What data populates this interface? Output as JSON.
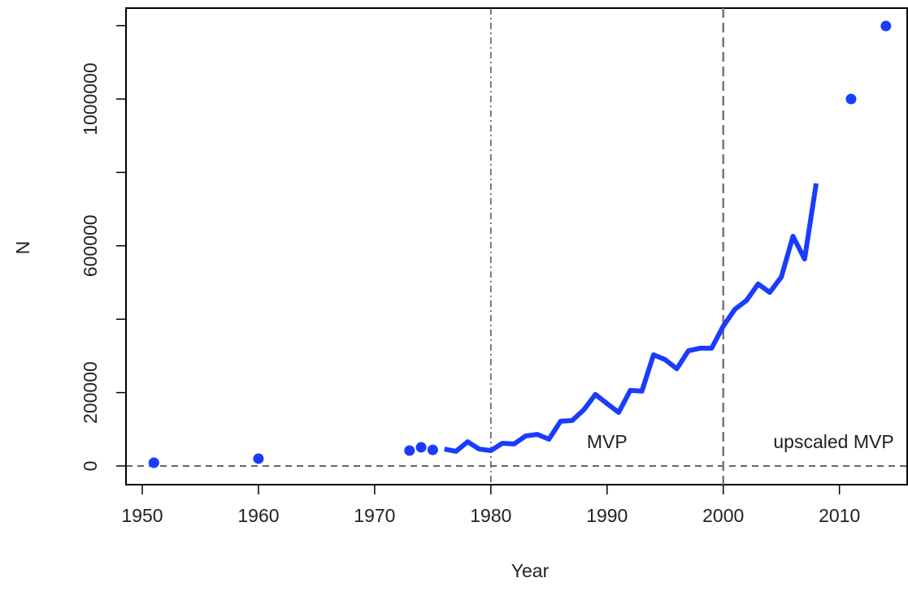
{
  "chart_data": {
    "type": "line",
    "x_label": "Year",
    "y_label": "N",
    "xlim": [
      1948.6,
      2015.9
    ],
    "ylim": [
      -50900,
      1247800
    ],
    "xticks": [
      1950,
      1960,
      1970,
      1980,
      1990,
      2000,
      2010
    ],
    "yticks": [
      0,
      200000,
      {
        "value": 400000,
        "label": null
      },
      600000,
      {
        "value": 800000,
        "label": null
      },
      1000000,
      {
        "value": 1200000,
        "label": null
      }
    ],
    "series": [
      {
        "style": "points",
        "color": "#1a3cff",
        "x": [
          1951,
          1960,
          1973,
          1974,
          1975,
          2011,
          2014
        ],
        "values": [
          8800,
          20000,
          42000,
          51000,
          44000,
          1000000,
          1199000
        ]
      },
      {
        "style": "line",
        "color": "#1a3cff",
        "x": [
          1976,
          1977,
          1978,
          1979,
          1980,
          1981,
          1982,
          1983,
          1984,
          1985,
          1986,
          1987,
          1988,
          1989,
          1990,
          1991,
          1992,
          1993,
          1994,
          1995,
          1996,
          1997,
          1998,
          1999,
          2000,
          2001,
          2002,
          2003,
          2004,
          2005,
          2006,
          2007,
          2008
        ],
        "values": [
          46000,
          40000,
          66000,
          46000,
          42000,
          62000,
          60000,
          82000,
          86000,
          73000,
          122000,
          124000,
          153000,
          195000,
          170000,
          146000,
          206000,
          204000,
          303000,
          290000,
          265000,
          314000,
          321000,
          321000,
          381000,
          427000,
          451000,
          496000,
          473000,
          515000,
          626000,
          564000,
          770000
        ]
      }
    ],
    "vlines": [
      {
        "x": 1980,
        "dash": "dotdash"
      },
      {
        "x": 2000,
        "dash": "dashed"
      }
    ],
    "hline": 0,
    "annotations": [
      {
        "text": "MVP",
        "x": 1990,
        "y": 62000
      },
      {
        "text": "upscaled MVP",
        "x": 2009.5,
        "y": 62000
      }
    ]
  }
}
